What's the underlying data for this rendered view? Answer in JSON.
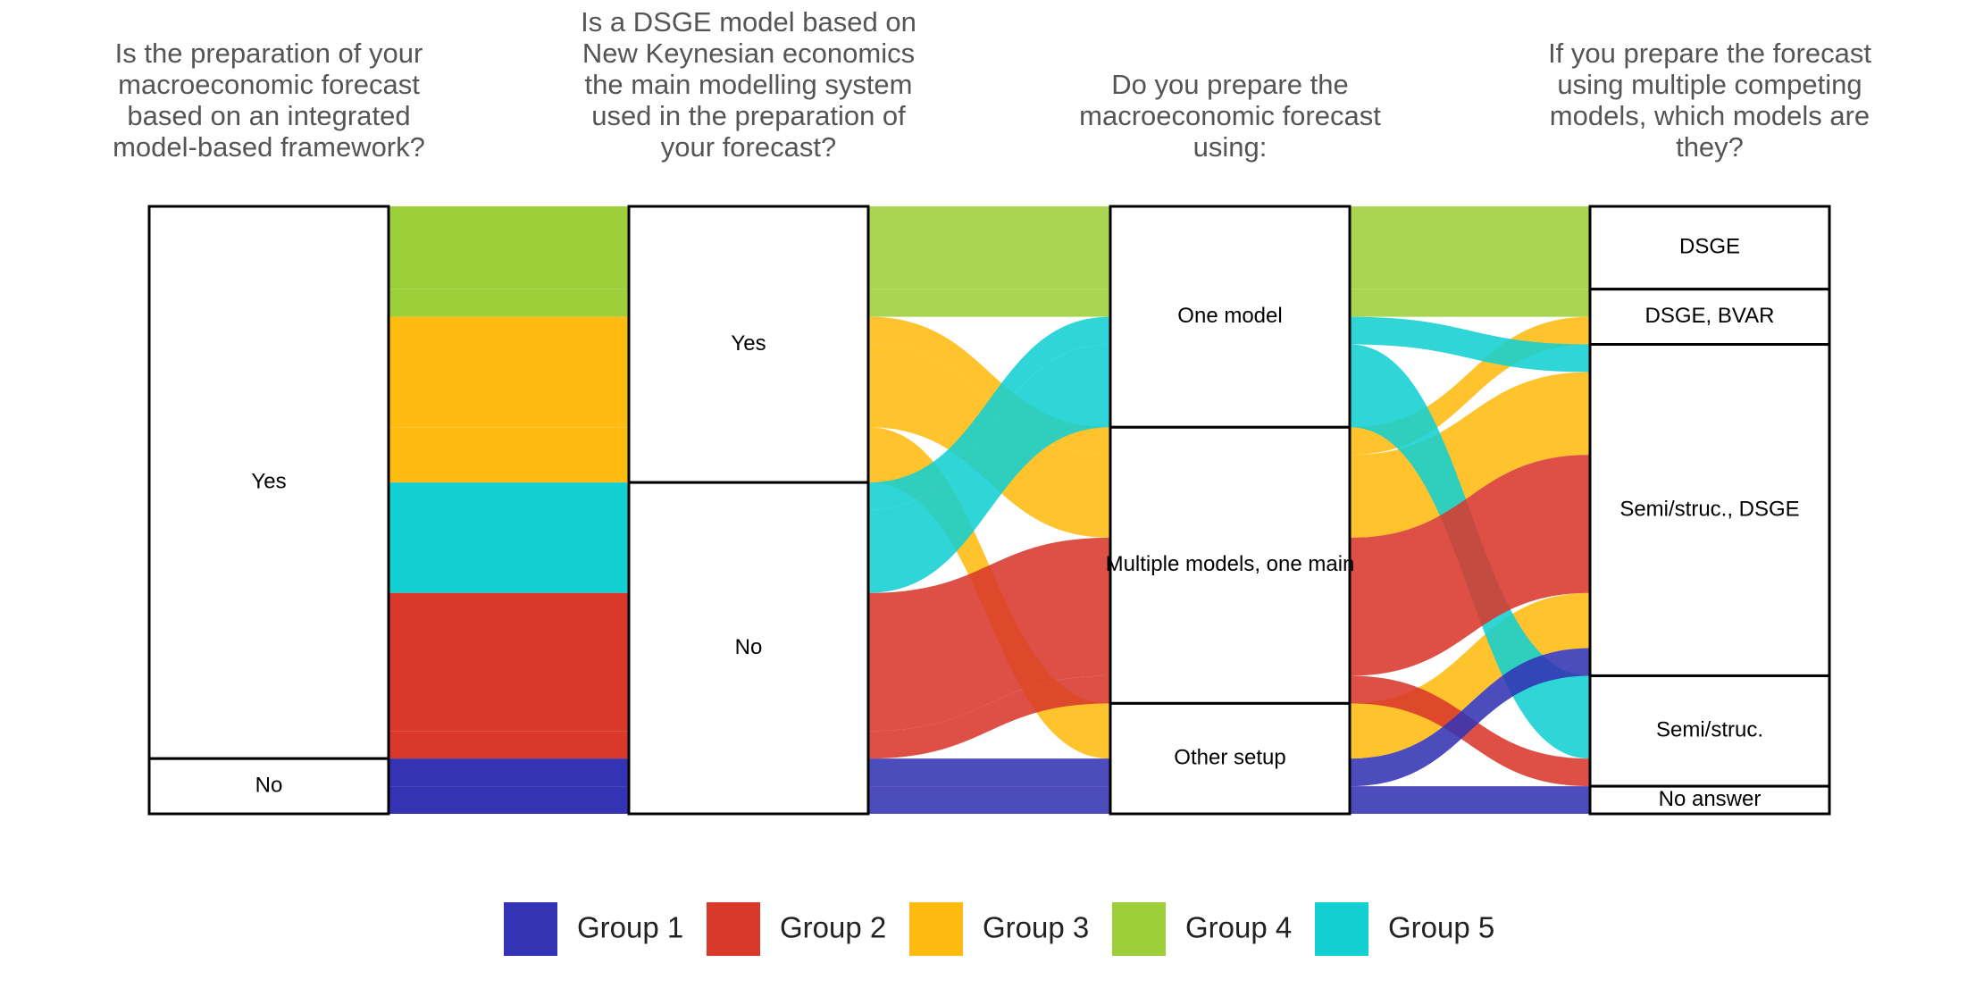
{
  "chart_data": {
    "type": "alluvial",
    "axes": [
      {
        "title": "Is the preparation of your macroeconomic forecast based on an integrated model-based framework?",
        "strata": [
          "Yes",
          "No"
        ]
      },
      {
        "title": "Is a DSGE model based on New Keynesian economics the main modelling system used in the preparation of your forecast?",
        "strata": [
          "Yes",
          "No"
        ]
      },
      {
        "title": "Do you prepare the macroeconomic forecast using:",
        "strata": [
          "One model",
          "Multiple models, one main",
          "Other setup"
        ]
      },
      {
        "title": "If you prepare the forecast using multiple competing models, which models are they?",
        "strata": [
          "DSGE",
          "DSGE, BVAR",
          "Semi/struc., DSGE",
          "Semi/struc.",
          "No answer"
        ]
      }
    ],
    "series": [
      {
        "name": "Group 1",
        "color": "#3333b3"
      },
      {
        "name": "Group 2",
        "color": "#d9382b"
      },
      {
        "name": "Group 3",
        "color": "#ffbb11"
      },
      {
        "name": "Group 4",
        "color": "#9ccf3a"
      },
      {
        "name": "Group 5",
        "color": "#12cfd1"
      }
    ],
    "flows": [
      {
        "group": "Group 4",
        "path": [
          "Yes",
          "Yes",
          "One model",
          "DSGE"
        ],
        "count": 3
      },
      {
        "group": "Group 4",
        "path": [
          "Yes",
          "Yes",
          "One model",
          "DSGE, BVAR"
        ],
        "count": 1
      },
      {
        "group": "Group 3",
        "path": [
          "Yes",
          "Yes",
          "Multiple models, one main",
          "DSGE, BVAR"
        ],
        "count": 1
      },
      {
        "group": "Group 3",
        "path": [
          "Yes",
          "Yes",
          "Multiple models, one main",
          "Semi/struc., DSGE"
        ],
        "count": 3
      },
      {
        "group": "Group 3",
        "path": [
          "Yes",
          "Yes",
          "Other setup",
          "Semi/struc., DSGE"
        ],
        "count": 2
      },
      {
        "group": "Group 5",
        "path": [
          "Yes",
          "No",
          "One model",
          "Semi/struc., DSGE"
        ],
        "count": 1
      },
      {
        "group": "Group 5",
        "path": [
          "Yes",
          "No",
          "One model",
          "Semi/struc."
        ],
        "count": 3
      },
      {
        "group": "Group 2",
        "path": [
          "Yes",
          "No",
          "Multiple models, one main",
          "Semi/struc., DSGE"
        ],
        "count": 5
      },
      {
        "group": "Group 2",
        "path": [
          "Yes",
          "No",
          "Multiple models, one main",
          "Semi/struc."
        ],
        "count": 1
      },
      {
        "group": "Group 1",
        "path": [
          "No",
          "No",
          "Other setup",
          "Semi/struc., DSGE"
        ],
        "count": 1
      },
      {
        "group": "Group 1",
        "path": [
          "No",
          "No",
          "Other setup",
          "No answer"
        ],
        "count": 1
      }
    ]
  }
}
